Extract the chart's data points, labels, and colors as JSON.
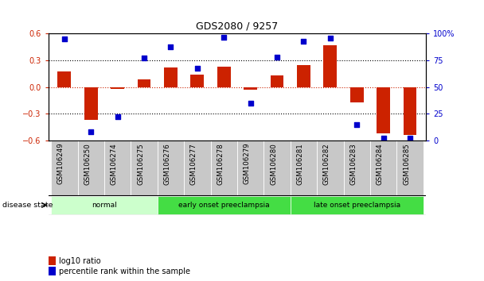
{
  "title": "GDS2080 / 9257",
  "samples": [
    "GSM106249",
    "GSM106250",
    "GSM106274",
    "GSM106275",
    "GSM106276",
    "GSM106277",
    "GSM106278",
    "GSM106279",
    "GSM106280",
    "GSM106281",
    "GSM106282",
    "GSM106283",
    "GSM106284",
    "GSM106285"
  ],
  "log10_ratio": [
    0.18,
    -0.37,
    -0.02,
    0.09,
    0.22,
    0.14,
    0.23,
    -0.03,
    0.13,
    0.25,
    0.47,
    -0.17,
    -0.52,
    -0.54
  ],
  "percentile_rank": [
    95,
    8,
    22,
    77,
    88,
    68,
    97,
    35,
    78,
    93,
    96,
    15,
    2,
    2
  ],
  "ylim_left": [
    -0.6,
    0.6
  ],
  "ylim_right": [
    0,
    100
  ],
  "yticks_left": [
    -0.6,
    -0.3,
    0.0,
    0.3,
    0.6
  ],
  "yticks_right": [
    0,
    25,
    50,
    75,
    100
  ],
  "ytick_labels_right": [
    "0",
    "25",
    "50",
    "75",
    "100%"
  ],
  "bar_color": "#cc2200",
  "dot_color": "#0000cc",
  "zero_line_color": "#cc2200",
  "grid_color": "#000000",
  "cat_data": [
    {
      "label": "normal",
      "start": 0,
      "end": 3,
      "color": "#ccffcc"
    },
    {
      "label": "early onset preeclampsia",
      "start": 4,
      "end": 8,
      "color": "#44dd44"
    },
    {
      "label": "late onset preeclampsia",
      "start": 9,
      "end": 13,
      "color": "#44dd44"
    }
  ],
  "disease_state_label": "disease state",
  "legend_items": [
    {
      "label": "log10 ratio",
      "color": "#cc2200"
    },
    {
      "label": "percentile rank within the sample",
      "color": "#0000cc"
    }
  ],
  "background_color": "#ffffff",
  "tick_area_color": "#c8c8c8"
}
